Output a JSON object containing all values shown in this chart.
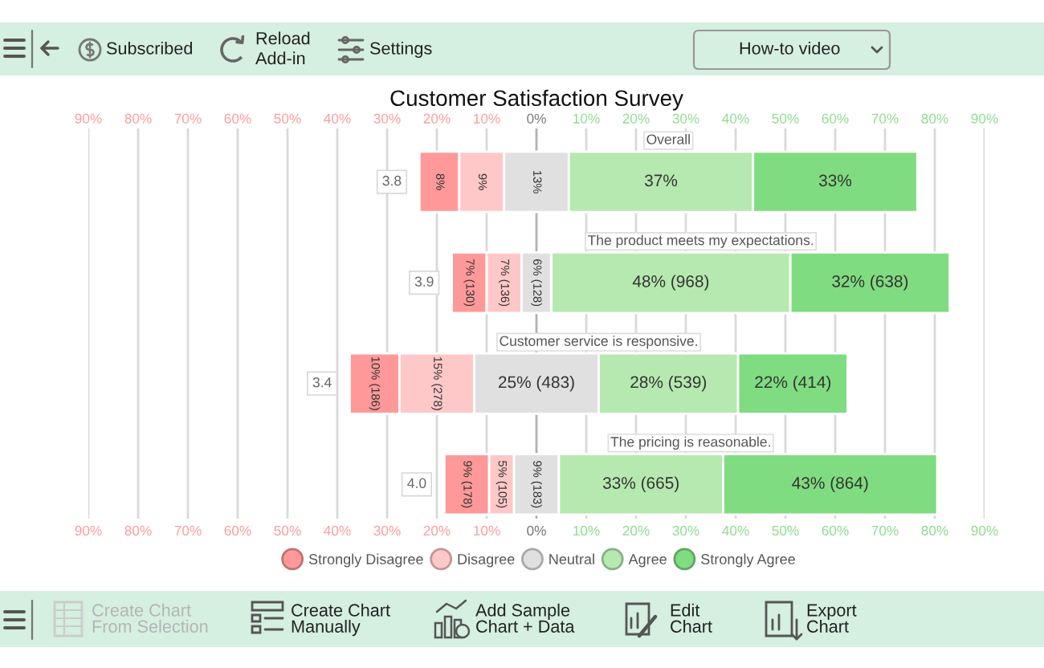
{
  "chart_data": {
    "type": "bar",
    "title": "Customer Satisfaction Survey",
    "orientation": "horizontal",
    "categories": [
      "Overall",
      "The product meets my expectations.",
      "Customer service is responsive.",
      "The pricing is reasonable."
    ],
    "series": [
      {
        "name": "Strongly Disagree",
        "color": "#ff9999",
        "base": [
          -23.5,
          -17,
          -37.5,
          -18.5
        ],
        "values": [
          8,
          7,
          10,
          9
        ],
        "value_labels": [
          "8%",
          "7% (130)",
          "10% (186)",
          "9% (178)"
        ]
      },
      {
        "name": "Disagree",
        "color": "#ffc8c8",
        "base": [
          -15.5,
          -10,
          -27.5,
          -9.5
        ],
        "values": [
          9,
          7,
          15,
          5
        ],
        "value_labels": [
          "9%",
          "7% (136)",
          "15% (278)",
          "5% (105)"
        ]
      },
      {
        "name": "Neutral",
        "color": "#e0e0e0",
        "base": [
          -6.5,
          -3,
          -12.5,
          -4.5
        ],
        "values": [
          13,
          6,
          25,
          9
        ],
        "value_labels": [
          "13%",
          "6% (128)",
          "25% (483)",
          "9% (183)"
        ]
      },
      {
        "name": "Agree",
        "color": "#b6e9b0",
        "base": [
          6.5,
          3,
          12.5,
          4.5
        ],
        "values": [
          37,
          48,
          28,
          33
        ],
        "value_labels": [
          "37%",
          "48% (968)",
          "28% (539)",
          "33% (665)"
        ]
      },
      {
        "name": "Strongly Agree",
        "color": "#80dc80",
        "base": [
          43.5,
          51,
          40.5,
          37.5
        ],
        "values": [
          33,
          32,
          22,
          43
        ],
        "value_labels": [
          "33%",
          "32% (638)",
          "22% (414)",
          "43% (864)"
        ]
      }
    ],
    "xlim": [
      -90,
      90
    ],
    "xticks": [
      {
        "value": -90,
        "label": "90%"
      },
      {
        "value": -80,
        "label": "80%"
      },
      {
        "value": -70,
        "label": "70%"
      },
      {
        "value": -60,
        "label": "60%"
      },
      {
        "value": -50,
        "label": "50%"
      },
      {
        "value": -40,
        "label": "40%"
      },
      {
        "value": -30,
        "label": "30%"
      },
      {
        "value": -20,
        "label": "20%"
      },
      {
        "value": -10,
        "label": "10%"
      },
      {
        "value": 0,
        "label": "0%"
      },
      {
        "value": 10,
        "label": "10%"
      },
      {
        "value": 20,
        "label": "20%"
      },
      {
        "value": 30,
        "label": "30%"
      },
      {
        "value": 40,
        "label": "40%"
      },
      {
        "value": 50,
        "label": "50%"
      },
      {
        "value": 60,
        "label": "60%"
      },
      {
        "value": 70,
        "label": "70%"
      },
      {
        "value": 80,
        "label": "80%"
      },
      {
        "value": 90,
        "label": "90%"
      }
    ],
    "x2lim": [
      -90,
      90
    ],
    "x2ticks": [
      {
        "value": -90,
        "label": "90%"
      },
      {
        "value": -80,
        "label": "80%"
      },
      {
        "value": -70,
        "label": "70%"
      },
      {
        "value": -60,
        "label": "60%"
      },
      {
        "value": -50,
        "label": "50%"
      },
      {
        "value": -40,
        "label": "40%"
      },
      {
        "value": -30,
        "label": "30%"
      },
      {
        "value": -20,
        "label": "20%"
      },
      {
        "value": -10,
        "label": "10%"
      },
      {
        "value": 0,
        "label": "0%"
      },
      {
        "value": 10,
        "label": "10%"
      },
      {
        "value": 20,
        "label": "20%"
      },
      {
        "value": 30,
        "label": "30%"
      },
      {
        "value": 40,
        "label": "40%"
      },
      {
        "value": 50,
        "label": "50%"
      },
      {
        "value": 60,
        "label": "60%"
      },
      {
        "value": 70,
        "label": "70%"
      },
      {
        "value": 80,
        "label": "80%"
      },
      {
        "value": 90,
        "label": "90%"
      }
    ],
    "grid": "x",
    "legend": "bottom",
    "annotations": [
      {
        "text": "3.8",
        "x": -23.5,
        "y": "Overall"
      },
      {
        "text": "3.9",
        "x": -17,
        "y": "The product meets my expectations."
      },
      {
        "text": "3.4",
        "x": -37.5,
        "y": "Customer service is responsive."
      },
      {
        "text": "4.0",
        "x": -18.5,
        "y": "The pricing is reasonable."
      },
      "Subscribed",
      "Reload\nAdd-in",
      "Settings",
      "How-to video",
      "Create Chart\nFrom Selection",
      "Create Chart\nManually",
      "Add Sample\nChart + Data",
      "Edit\nChart",
      "Export\nChart"
    ]
  }
}
